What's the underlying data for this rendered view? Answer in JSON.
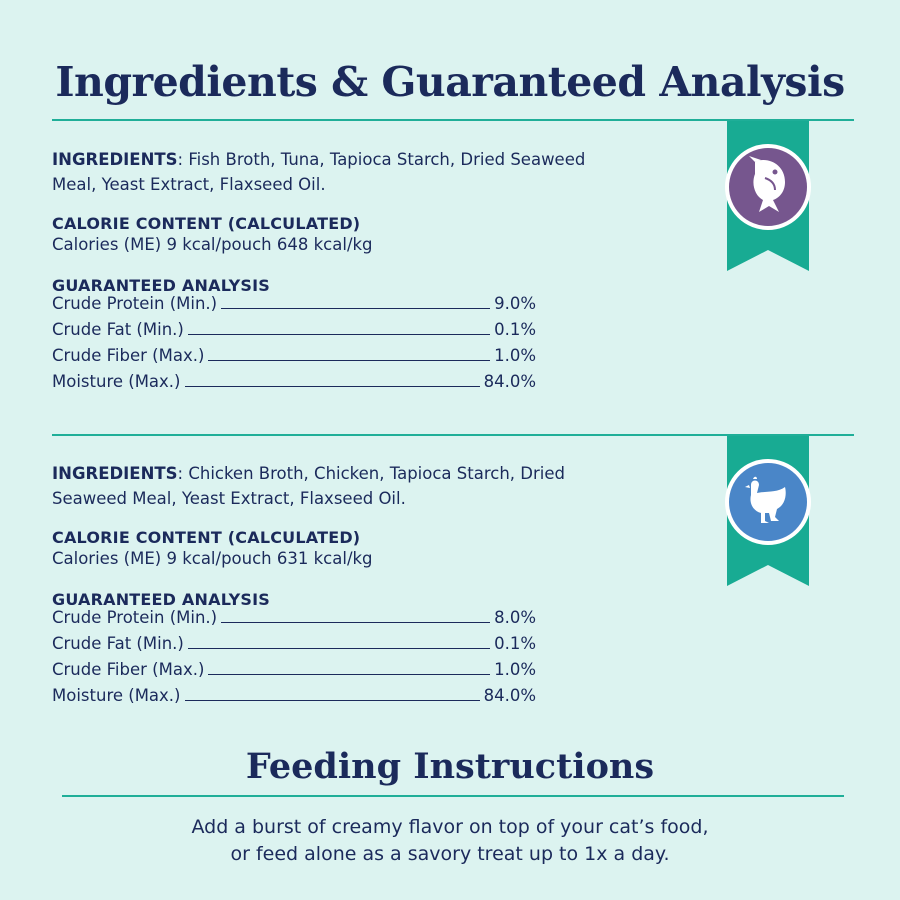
{
  "title": "Ingredients & Guaranteed Analysis",
  "colors": {
    "navy": "#1b2a5b",
    "teal": "#18ab93",
    "background": "#dcf3f0",
    "fish_badge": "#76568e",
    "chicken_badge": "#4a86c8"
  },
  "products": [
    {
      "icon": "fish-icon",
      "ingredients_label": "INGREDIENTS",
      "ingredients_line1": ": Fish Broth, Tuna, Tapioca Starch, Dried Seaweed",
      "ingredients_line2": "Meal, Yeast Extract, Flaxseed Oil.",
      "calorie_heading": "CALORIE CONTENT (CALCULATED)",
      "calorie_text": "Calories (ME) 9 kcal/pouch  648 kcal/kg",
      "analysis_heading": "GUARANTEED ANALYSIS",
      "analysis": [
        {
          "name": "Crude Protein (Min.)",
          "value": "9.0%"
        },
        {
          "name": "Crude Fat (Min.)",
          "value": "0.1%"
        },
        {
          "name": "Crude Fiber (Max.)",
          "value": "1.0%"
        },
        {
          "name": "Moisture (Max.)",
          "value": "84.0%"
        }
      ]
    },
    {
      "icon": "chicken-icon",
      "ingredients_label": "INGREDIENTS",
      "ingredients_line1": ": Chicken Broth, Chicken, Tapioca Starch, Dried",
      "ingredients_line2": "Seaweed Meal, Yeast Extract, Flaxseed Oil.",
      "calorie_heading": "CALORIE CONTENT (CALCULATED)",
      "calorie_text": "Calories (ME) 9 kcal/pouch  631 kcal/kg",
      "analysis_heading": "GUARANTEED ANALYSIS",
      "analysis": [
        {
          "name": "Crude Protein (Min.)",
          "value": "8.0%"
        },
        {
          "name": "Crude Fat (Min.)",
          "value": "0.1%"
        },
        {
          "name": "Crude Fiber (Max.)",
          "value": "1.0%"
        },
        {
          "name": "Moisture (Max.)",
          "value": "84.0%"
        }
      ]
    }
  ],
  "feeding": {
    "title": "Feeding Instructions",
    "line1": "Add a burst of creamy flavor on top of your cat’s food,",
    "line2": "or feed alone as a savory treat up to 1x a day."
  }
}
